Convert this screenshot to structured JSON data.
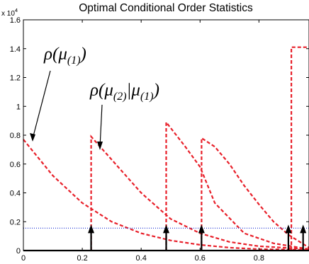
{
  "chart_data": {
    "type": "line",
    "title": "Optimal Conditional Order Statistics",
    "xlabel": "",
    "ylabel": "",
    "y_multiplier_label": "x 10",
    "y_multiplier_exp": "4",
    "xlim": [
      0,
      0.97
    ],
    "ylim": [
      0,
      1.6
    ],
    "x_ticks": [
      0,
      0.2,
      0.4,
      0.6,
      0.8
    ],
    "x_tick_labels": [
      "0",
      "0.2",
      "0.4",
      "0.6",
      "0.8"
    ],
    "y_ticks": [
      0,
      0.2,
      0.4,
      0.6,
      0.8,
      1,
      1.2,
      1.4,
      1.6
    ],
    "y_tick_labels": [
      "0",
      "0.2",
      "0.4",
      "0.6",
      "0.8",
      "1",
      "1.2",
      "1.4",
      "1.6"
    ],
    "grid": false,
    "legend": "none",
    "annotations": [
      {
        "text": "ρ(μ(1))",
        "math_base": "ρ(μ",
        "math_sub": "(1)",
        "math_end": ")",
        "points_to": [
          0.03,
          0.72
        ]
      },
      {
        "text": "ρ(μ(2)|μ(1))",
        "math_base": "ρ(μ",
        "math_sub": "(2)",
        "math_mid": "|μ",
        "math_sub2": "(1)",
        "math_end": ")",
        "points_to": [
          0.26,
          0.71
        ]
      }
    ],
    "series": [
      {
        "style": "dashed",
        "color": "#e8202a",
        "points": [
          [
            0,
            0.77
          ],
          [
            0.1,
            0.52
          ],
          [
            0.2,
            0.33
          ],
          [
            0.3,
            0.2
          ],
          [
            0.4,
            0.12
          ],
          [
            0.5,
            0.07
          ],
          [
            0.6,
            0.04
          ],
          [
            0.7,
            0.02
          ],
          [
            0.8,
            0.01
          ],
          [
            0.97,
            0.005
          ]
        ]
      },
      {
        "style": "dashed",
        "color": "#e8202a",
        "points": [
          [
            0.23,
            0
          ],
          [
            0.23,
            0.79
          ],
          [
            0.3,
            0.63
          ],
          [
            0.4,
            0.4
          ],
          [
            0.5,
            0.22
          ],
          [
            0.6,
            0.12
          ],
          [
            0.7,
            0.06
          ],
          [
            0.8,
            0.03
          ],
          [
            0.97,
            0.01
          ]
        ]
      },
      {
        "style": "dashed",
        "color": "#e8202a",
        "points": [
          [
            0.485,
            0
          ],
          [
            0.485,
            0.89
          ],
          [
            0.55,
            0.72
          ],
          [
            0.6,
            0.58
          ],
          [
            0.65,
            0.33
          ],
          [
            0.75,
            0.12
          ],
          [
            0.85,
            0.05
          ],
          [
            0.97,
            0.01
          ]
        ]
      },
      {
        "style": "dashed",
        "color": "#e8202a",
        "points": [
          [
            0.605,
            0
          ],
          [
            0.605,
            0.78
          ],
          [
            0.65,
            0.72
          ],
          [
            0.7,
            0.6
          ],
          [
            0.75,
            0.45
          ],
          [
            0.8,
            0.32
          ],
          [
            0.85,
            0.2
          ],
          [
            0.9,
            0.11
          ],
          [
            0.97,
            0.02
          ]
        ]
      },
      {
        "style": "dashed",
        "color": "#e8202a",
        "points": [
          [
            0.91,
            0
          ],
          [
            0.91,
            1.41
          ],
          [
            0.97,
            1.41
          ]
        ]
      },
      {
        "style": "dotted",
        "color": "#2b3fd6",
        "points": [
          [
            0,
            0.155
          ],
          [
            0.97,
            0.155
          ]
        ]
      },
      {
        "style": "solid",
        "color": "#000000",
        "points": [
          [
            0,
            0
          ],
          [
            0.97,
            0
          ]
        ]
      }
    ],
    "stems": [
      {
        "x": 0.23,
        "y": 0.16
      },
      {
        "x": 0.485,
        "y": 0.16
      },
      {
        "x": 0.605,
        "y": 0.16
      },
      {
        "x": 0.9,
        "y": 0.16
      },
      {
        "x": 0.95,
        "y": 0.16
      }
    ]
  }
}
